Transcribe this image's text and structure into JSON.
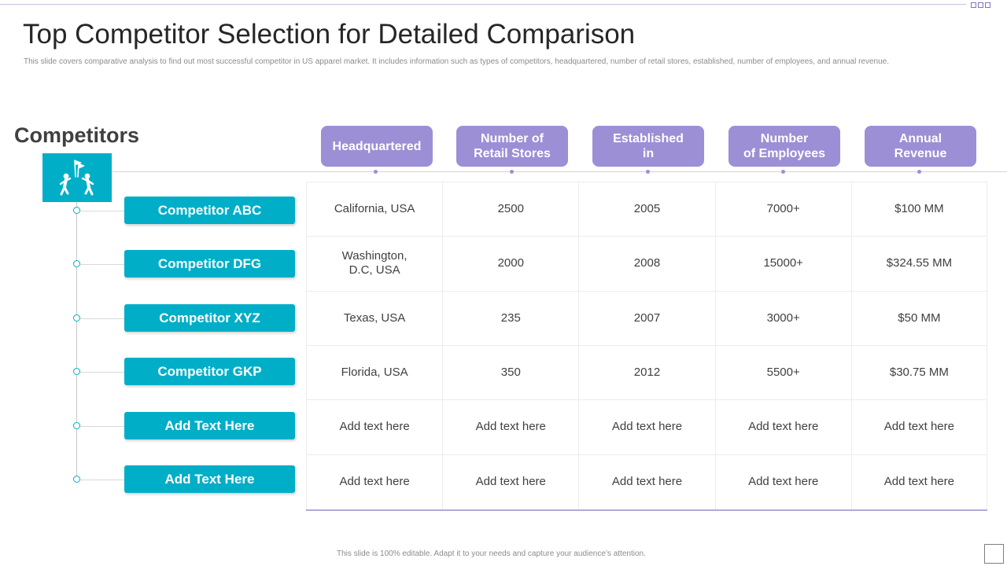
{
  "slide": {
    "title": "Top Competitor Selection for Detailed Comparison",
    "subtitle": "This slide covers comparative analysis to find out most successful competitor in US apparel market. It includes information such as types of competitors, headquartered, number of retail stores, established, number of employees, and annual revenue.",
    "footer": "This slide is 100% editable. Adapt it to your needs and capture your audience’s attention."
  },
  "competitors": {
    "heading": "Competitors",
    "icon": "people-flag-icon",
    "items": [
      "Competitor ABC",
      "Competitor DFG",
      "Competitor XYZ",
      "Competitor GKP",
      "Add Text Here",
      "Add Text Here"
    ]
  },
  "table": {
    "headers": [
      [
        "Headquartered"
      ],
      [
        "Number of",
        "Retail Stores"
      ],
      [
        "Established",
        "in"
      ],
      [
        "Number",
        "of Employees"
      ],
      [
        "Annual",
        "Revenue"
      ]
    ],
    "rows": [
      [
        [
          "California, USA"
        ],
        [
          "2500"
        ],
        [
          "2005"
        ],
        [
          "7000+"
        ],
        [
          "$100 MM"
        ]
      ],
      [
        [
          "Washington,",
          "D.C, USA"
        ],
        [
          "2000"
        ],
        [
          "2008"
        ],
        [
          "15000+"
        ],
        [
          "$324.55 MM"
        ]
      ],
      [
        [
          "Texas, USA"
        ],
        [
          "235"
        ],
        [
          "2007"
        ],
        [
          "3000+"
        ],
        [
          "$50 MM"
        ]
      ],
      [
        [
          "Florida, USA"
        ],
        [
          "350"
        ],
        [
          "2012"
        ],
        [
          "5500+"
        ],
        [
          "$30.75 MM"
        ]
      ],
      [
        [
          "Add text here"
        ],
        [
          "Add text here"
        ],
        [
          "Add text here"
        ],
        [
          "Add text here"
        ],
        [
          "Add text here"
        ]
      ],
      [
        [
          "Add text here"
        ],
        [
          "Add text here"
        ],
        [
          "Add text here"
        ],
        [
          "Add text here"
        ],
        [
          "Add text here"
        ]
      ]
    ]
  },
  "colors": {
    "accent_teal": "#00aec7",
    "header_purple": "#9c8fd6",
    "rule_purple": "#b3a8db"
  }
}
